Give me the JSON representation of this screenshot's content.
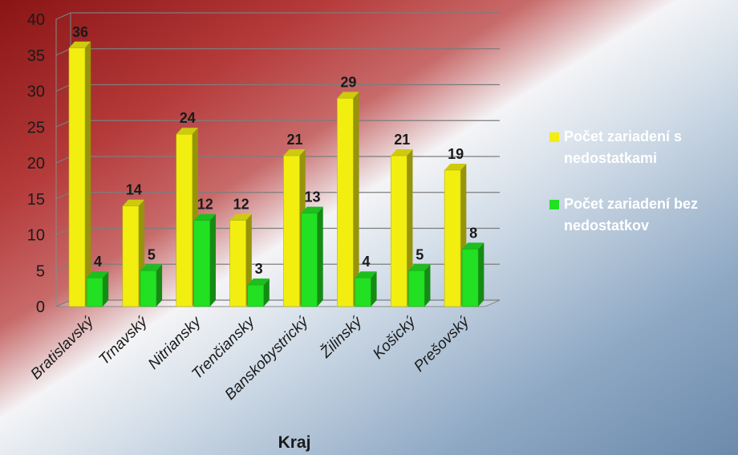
{
  "chart_data": {
    "type": "bar",
    "title": "",
    "xlabel": "Kraj",
    "ylabel": "",
    "ylim": [
      0,
      40
    ],
    "yticks": [
      0,
      5,
      10,
      15,
      20,
      25,
      30,
      35,
      40
    ],
    "grid": true,
    "legend_position": "right",
    "categories": [
      "Bratislavský",
      "Trnavský",
      "Nitriansky",
      "Trenčiansky",
      "Banskobystrický",
      "Žilinský",
      "Košický",
      "Prešovský"
    ],
    "series": [
      {
        "name_lines": [
          "Počet zariadení s",
          "nedostatkami"
        ],
        "color": "#f2ee10",
        "values": [
          36,
          14,
          24,
          12,
          21,
          29,
          21,
          19
        ]
      },
      {
        "name_lines": [
          "Počet zariadení bez",
          "nedostatkov"
        ],
        "color": "#22e022",
        "values": [
          4,
          5,
          12,
          3,
          13,
          4,
          5,
          8
        ]
      }
    ]
  }
}
